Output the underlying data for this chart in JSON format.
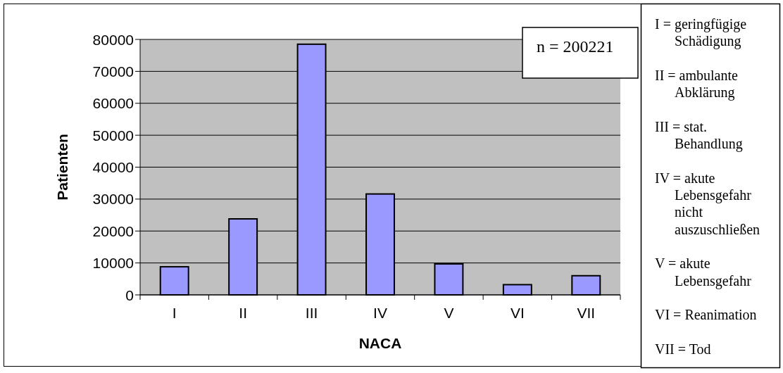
{
  "chart_data": {
    "type": "bar",
    "xlabel": "NACA",
    "ylabel": "Patienten",
    "categories": [
      "I",
      "II",
      "III",
      "IV",
      "V",
      "VI",
      "VII"
    ],
    "values": [
      8800,
      23800,
      78500,
      31600,
      9700,
      3200,
      6000
    ],
    "color": "#9999ff",
    "ylim": [
      0,
      80000
    ],
    "yticks": [
      0,
      10000,
      20000,
      30000,
      40000,
      50000,
      60000,
      70000,
      80000
    ],
    "grid": "y",
    "annotations": [
      "n = 200221",
      "I = geringfügige Schädigung",
      "II = ambulante Abklärung",
      "III = stat. Behandlung",
      "IV = akute Lebensgefahr nicht auszuschließen",
      "V = akute Lebensgefahr",
      "VI = Reanimation",
      "VII = Tod"
    ]
  }
}
